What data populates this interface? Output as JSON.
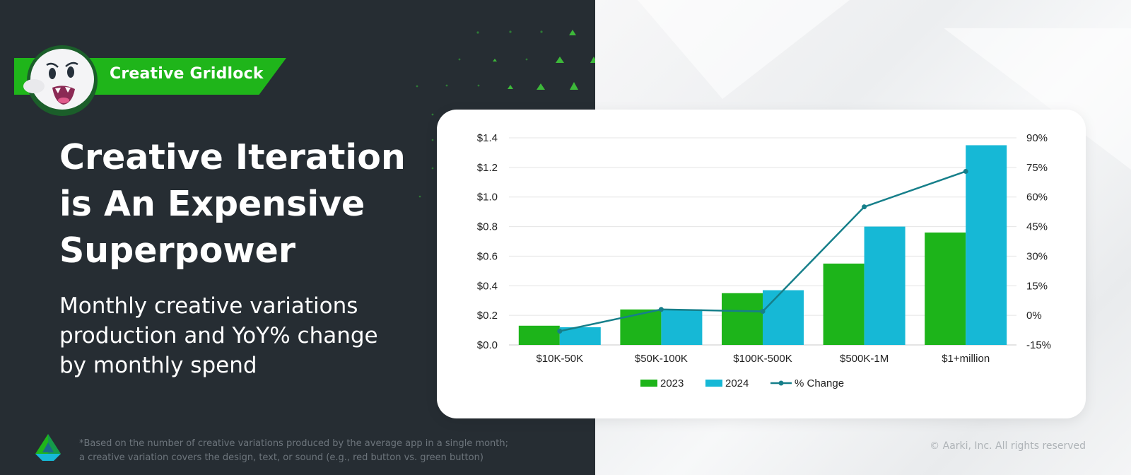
{
  "badge": {
    "label": "Creative Gridlock",
    "mascot_icon": "ghost-mascot-icon"
  },
  "headline": {
    "lines": [
      "Creative Iteration",
      "is An Expensive",
      "Superpower"
    ]
  },
  "subheadline": {
    "lines": [
      "Monthly creative variations",
      "production and YoY% change",
      "by monthly spend"
    ]
  },
  "footnote": {
    "lines": [
      "*Based on the number of creative variations produced by the average app in a single month;",
      "a creative variation covers the design, text, or sound (e.g., red button vs. green button)"
    ],
    "logo_icon": "aarki-logo-icon"
  },
  "copyright": "© Aarki, Inc. All rights reserved",
  "colors": {
    "dark_bg": "#262d33",
    "accent_green": "#1fb51a",
    "series_2023": "#1db41a",
    "series_2024": "#16b8d6",
    "series_change": "#167f8a"
  },
  "chart_data": {
    "type": "bar",
    "categories": [
      "$10K-50K",
      "$50K-100K",
      "$100K-500K",
      "$500K-1M",
      "$1+million"
    ],
    "series": [
      {
        "name": "2023",
        "type": "bar",
        "axis": "left",
        "values": [
          0.13,
          0.24,
          0.35,
          0.55,
          0.76
        ]
      },
      {
        "name": "2024",
        "type": "bar",
        "axis": "left",
        "values": [
          0.12,
          0.24,
          0.37,
          0.8,
          1.35
        ]
      },
      {
        "name": "% Change",
        "type": "line",
        "axis": "right",
        "values": [
          -8,
          3,
          2,
          55,
          73
        ]
      }
    ],
    "y_left": {
      "ticks": [
        "$0.0",
        "$0.2",
        "$0.4",
        "$0.6",
        "$0.8",
        "$1.0",
        "$1.2",
        "$1.4"
      ],
      "ylim": [
        0,
        1.4
      ]
    },
    "y_right": {
      "ticks": [
        "-15%",
        "0%",
        "15%",
        "30%",
        "45%",
        "60%",
        "75%",
        "90%"
      ],
      "ylim": [
        -15,
        90
      ]
    },
    "grid": true,
    "legend": "bottom",
    "title": "",
    "xlabel": "",
    "ylabel": ""
  }
}
